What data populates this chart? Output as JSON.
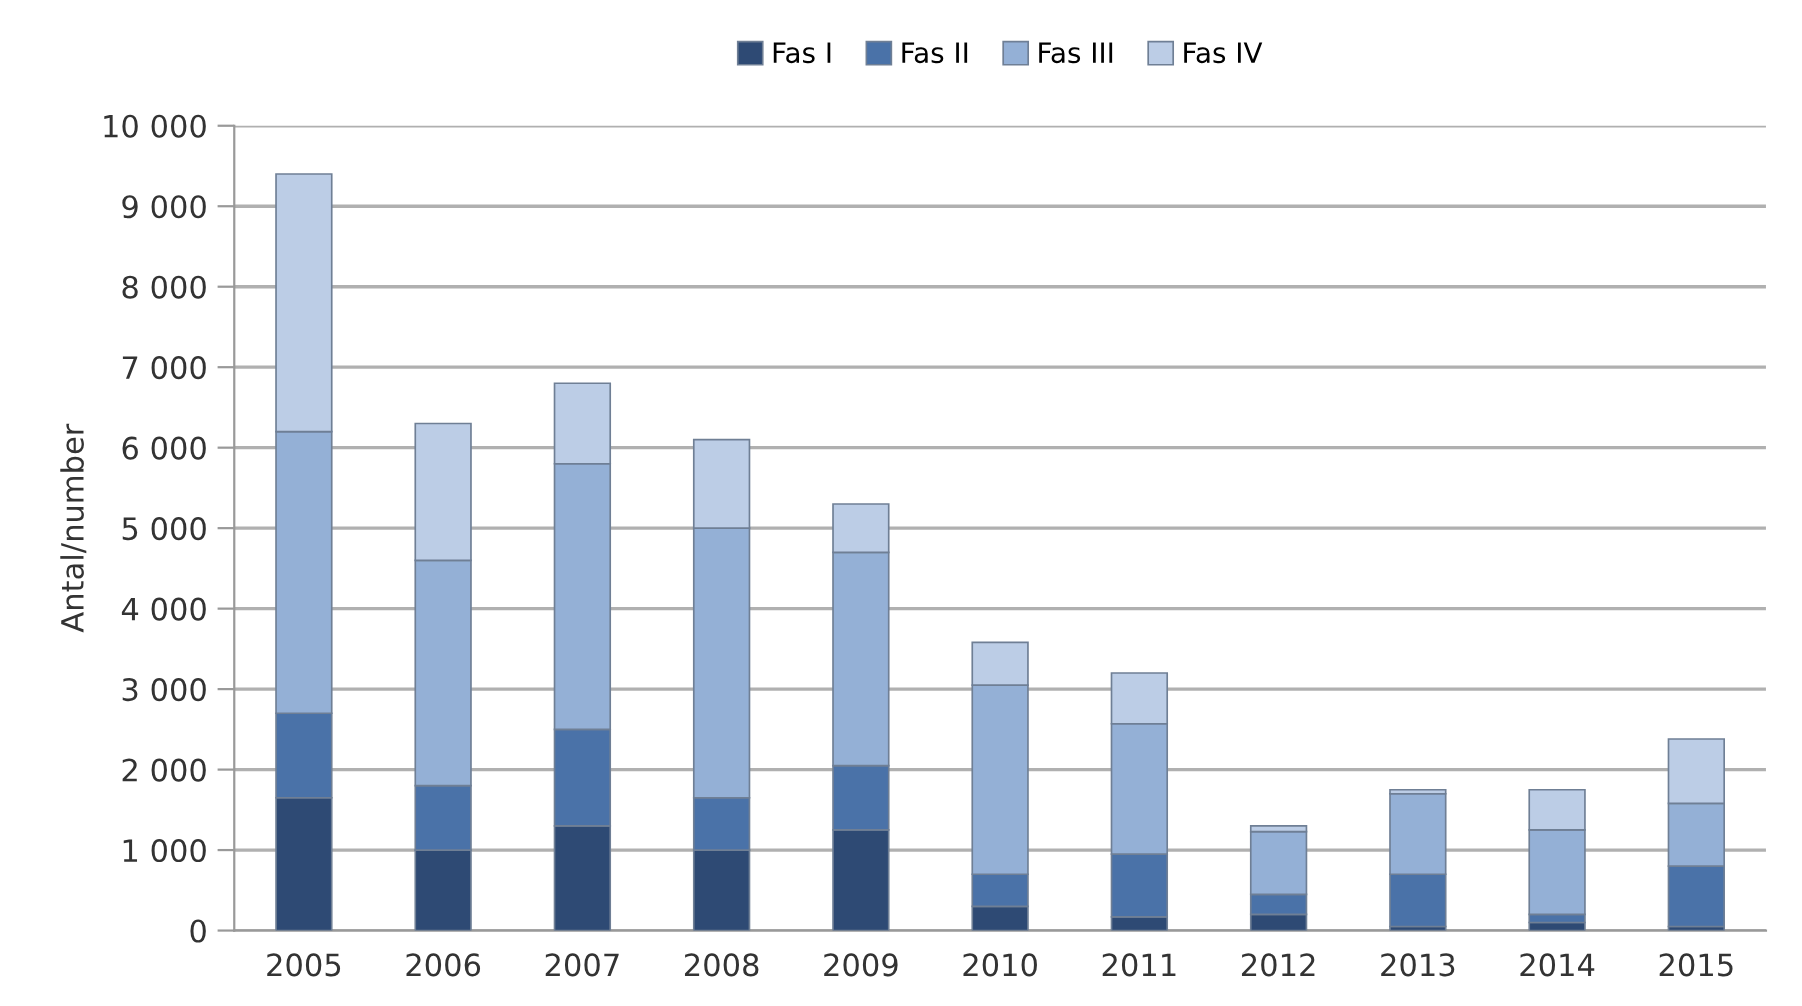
{
  "chart_data": {
    "type": "bar",
    "stacked": true,
    "ylabel": "Antal/number",
    "categories": [
      "2005",
      "2006",
      "2007",
      "2008",
      "2009",
      "2010",
      "2011",
      "2012",
      "2013",
      "2014",
      "2015"
    ],
    "series": [
      {
        "name": "Fas I",
        "color": "#2e4a74",
        "values": [
          1650,
          1000,
          1300,
          1000,
          1250,
          300,
          170,
          200,
          50,
          100,
          50
        ]
      },
      {
        "name": "Fas II",
        "color": "#4a72a8",
        "values": [
          1050,
          800,
          1200,
          650,
          800,
          400,
          780,
          250,
          650,
          100,
          750
        ]
      },
      {
        "name": "Fas III",
        "color": "#94b0d6",
        "values": [
          3500,
          2800,
          3300,
          3350,
          2650,
          2350,
          1620,
          780,
          1000,
          1050,
          780
        ]
      },
      {
        "name": "Fas IV",
        "color": "#bccde6",
        "values": [
          3200,
          1700,
          1000,
          1100,
          600,
          530,
          630,
          70,
          50,
          500,
          800
        ]
      }
    ],
    "ylim": [
      0,
      10000
    ],
    "yticks": [
      {
        "value": 0,
        "label": "0"
      },
      {
        "value": 1000,
        "label": "1 000"
      },
      {
        "value": 2000,
        "label": "2 000"
      },
      {
        "value": 3000,
        "label": "3 000"
      },
      {
        "value": 4000,
        "label": "4 000"
      },
      {
        "value": 5000,
        "label": "5 000"
      },
      {
        "value": 6000,
        "label": "6 000"
      },
      {
        "value": 7000,
        "label": "7 000"
      },
      {
        "value": 8000,
        "label": "8 000"
      },
      {
        "value": 9000,
        "label": "9 000"
      },
      {
        "value": 10000,
        "label": "10 000"
      }
    ],
    "grid": "y",
    "legend": "top"
  }
}
